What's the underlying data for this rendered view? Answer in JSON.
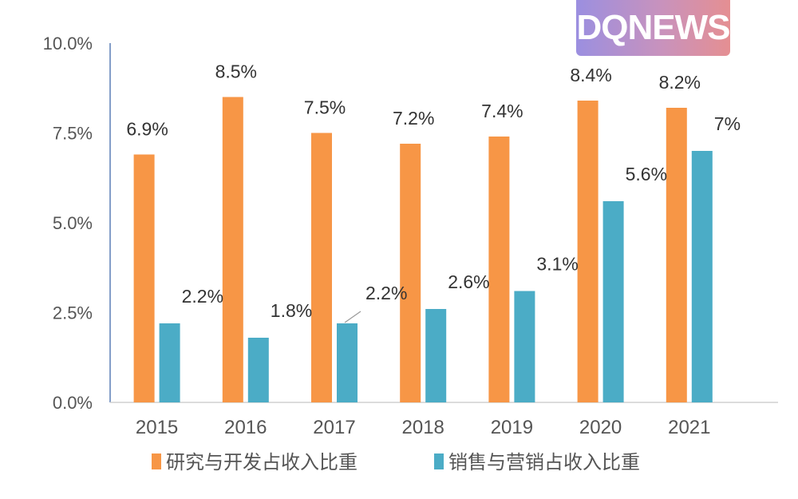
{
  "logo": {
    "text": "DQNEWS"
  },
  "chart_data": {
    "type": "bar",
    "title": "",
    "xlabel": "",
    "ylabel": "",
    "categories": [
      "2015",
      "2016",
      "2017",
      "2018",
      "2019",
      "2020",
      "2021"
    ],
    "series": [
      {
        "name": "研究与开发占收入比重",
        "color": "#f79646",
        "values": [
          6.9,
          8.5,
          7.5,
          7.2,
          7.4,
          8.4,
          8.2
        ],
        "labels": [
          "6.9%",
          "8.5%",
          "7.5%",
          "7.2%",
          "7.4%",
          "8.4%",
          "8.2%"
        ]
      },
      {
        "name": "销售与营销占收入比重",
        "color": "#4bacc6",
        "values": [
          2.2,
          1.8,
          2.2,
          2.6,
          3.1,
          5.6,
          7.0
        ],
        "labels": [
          "2.2%",
          "1.8%",
          "2.2%",
          "2.6%",
          "3.1%",
          "5.6%",
          "7%"
        ]
      }
    ],
    "ylim": [
      0,
      10
    ],
    "yticks": [
      "0.0%",
      "2.5%",
      "5.0%",
      "7.5%",
      "10.0%"
    ],
    "ytick_values": [
      0,
      2.5,
      5,
      7.5,
      10
    ],
    "grid": false,
    "legend_position": "bottom"
  }
}
